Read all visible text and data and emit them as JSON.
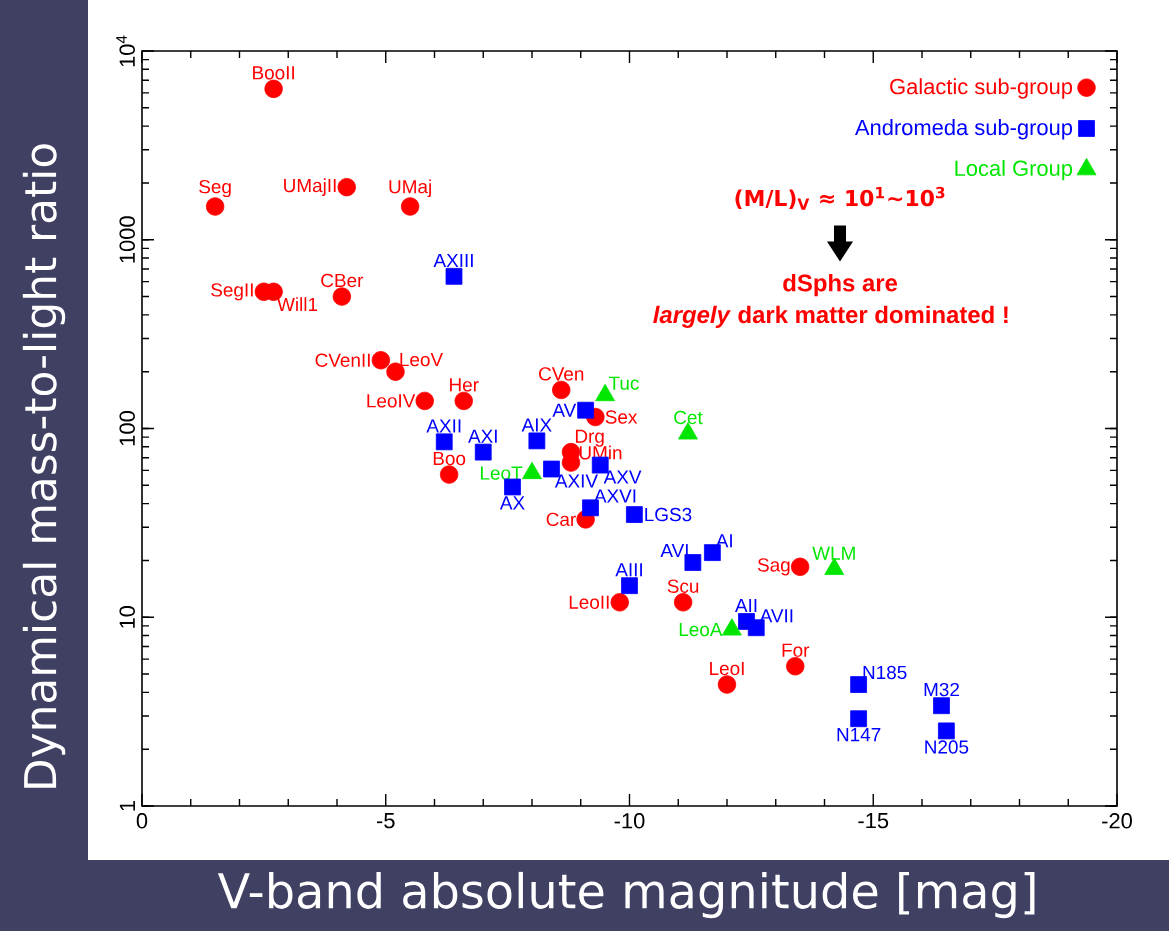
{
  "chart_data": {
    "type": "scatter",
    "xlabel": "V-band absolute magnitude [mag]",
    "ylabel": "Dynamical mass-to-light ratio",
    "xlim": [
      0,
      -20
    ],
    "xticks": [
      0,
      -5,
      -10,
      -15,
      -20
    ],
    "ylim": [
      1,
      10000
    ],
    "yticks": [
      1,
      10,
      100,
      1000,
      {
        "value": 10000,
        "label": "10$^{4}$"
      }
    ],
    "log": "y",
    "legend": "top right",
    "series": [
      {
        "name": "Galactic sub-group",
        "color": "#ff0000",
        "marker": "circle",
        "x": [
          -2.7,
          -1.5,
          -4.2,
          -5.5,
          -2.5,
          -2.7,
          -4.1,
          -4.9,
          -5.2,
          -5.8,
          -6.6,
          -8.6,
          -9.3,
          -6.3,
          -8.8,
          -8.8,
          -9.1,
          -9.8,
          -11.1,
          -13.5,
          -13.4,
          -12.0
        ],
        "values": [
          6300,
          1500,
          1900,
          1500,
          530,
          530,
          500,
          230,
          200,
          140,
          140,
          160,
          115,
          57,
          75,
          66,
          33,
          12,
          12,
          18.5,
          5.5,
          4.4
        ]
      },
      {
        "name": "Andromeda sub-group",
        "color": "#0000ff",
        "marker": "square",
        "x": [
          -6.4,
          -9.1,
          -6.2,
          -7.0,
          -8.1,
          -8.4,
          -9.4,
          -7.6,
          -9.2,
          -10.1,
          -11.3,
          -11.7,
          -10.0,
          -12.4,
          -12.6,
          -14.7,
          -14.7,
          -16.4,
          -16.5
        ],
        "values": [
          640,
          125,
          85,
          75,
          86,
          61,
          64,
          49,
          38,
          35,
          19.5,
          22,
          14.7,
          9.5,
          8.8,
          4.4,
          2.9,
          3.4,
          2.5
        ]
      },
      {
        "name": "Local Group",
        "color": "#00e600",
        "marker": "triangle",
        "x": [
          -9.5,
          -11.2,
          -8.0,
          -14.2,
          -12.1
        ],
        "values": [
          150,
          94,
          58,
          18,
          8.6
        ]
      }
    ],
    "annotations": [
      {
        "text": "BooII",
        "x": -2.7,
        "y": 6300
      },
      {
        "text": "Seg",
        "x": -1.5,
        "y": 1500
      },
      {
        "text": "UMajII",
        "x": -4.2,
        "y": 1900
      },
      {
        "text": "UMaj",
        "x": -5.5,
        "y": 1500
      },
      {
        "text": "SegII",
        "x": -2.5,
        "y": 530
      },
      {
        "text": "Will1",
        "x": -2.7,
        "y": 530
      },
      {
        "text": "CBer",
        "x": -4.1,
        "y": 500
      },
      {
        "text": "CVenII",
        "x": -4.9,
        "y": 230
      },
      {
        "text": "LeoV",
        "x": -5.2,
        "y": 200
      },
      {
        "text": "LeoIV",
        "x": -5.8,
        "y": 140
      },
      {
        "text": "Her",
        "x": -6.6,
        "y": 140
      },
      {
        "text": "CVen",
        "x": -8.6,
        "y": 160
      },
      {
        "text": "Sex",
        "x": -9.3,
        "y": 115
      },
      {
        "text": "Boo",
        "x": -6.3,
        "y": 57
      },
      {
        "text": "Drg",
        "x": -8.8,
        "y": 75
      },
      {
        "text": "UMin",
        "x": -8.8,
        "y": 66
      },
      {
        "text": "Car",
        "x": -9.1,
        "y": 33
      },
      {
        "text": "LeoII",
        "x": -9.8,
        "y": 12
      },
      {
        "text": "Scu",
        "x": -11.1,
        "y": 12
      },
      {
        "text": "Sag",
        "x": -13.5,
        "y": 18.5
      },
      {
        "text": "For",
        "x": -13.4,
        "y": 5.5
      },
      {
        "text": "LeoI",
        "x": -12.0,
        "y": 4.4
      },
      {
        "text": "AXIII",
        "x": -6.4,
        "y": 640
      },
      {
        "text": "AV",
        "x": -9.1,
        "y": 125
      },
      {
        "text": "AXII",
        "x": -6.2,
        "y": 85
      },
      {
        "text": "AXI",
        "x": -7.0,
        "y": 75
      },
      {
        "text": "AIX",
        "x": -8.1,
        "y": 86
      },
      {
        "text": "AXIV",
        "x": -8.4,
        "y": 61
      },
      {
        "text": "AXV",
        "x": -9.4,
        "y": 64
      },
      {
        "text": "AX",
        "x": -7.6,
        "y": 49
      },
      {
        "text": "AXVI",
        "x": -9.2,
        "y": 38
      },
      {
        "text": "LGS3",
        "x": -10.1,
        "y": 35
      },
      {
        "text": "AVI",
        "x": -11.3,
        "y": 19.5
      },
      {
        "text": "AI",
        "x": -11.7,
        "y": 22
      },
      {
        "text": "AIII",
        "x": -10.0,
        "y": 14.7
      },
      {
        "text": "AII",
        "x": -12.4,
        "y": 9.5
      },
      {
        "text": "AVII",
        "x": -12.6,
        "y": 8.8
      },
      {
        "text": "N185",
        "x": -14.7,
        "y": 4.4
      },
      {
        "text": "N147",
        "x": -14.7,
        "y": 2.9
      },
      {
        "text": "M32",
        "x": -16.4,
        "y": 3.4
      },
      {
        "text": "N205",
        "x": -16.5,
        "y": 2.5
      },
      {
        "text": "Tuc",
        "x": -9.5,
        "y": 150
      },
      {
        "text": "Cet",
        "x": -11.2,
        "y": 94
      },
      {
        "text": "LeoT",
        "x": -8.0,
        "y": 58
      },
      {
        "text": "WLM",
        "x": -14.2,
        "y": 18
      },
      {
        "text": "LeoA",
        "x": -12.1,
        "y": 8.6
      },
      "(M/L)$_{V}$ ≈ 10$^{1}$∼10$^{3}$",
      "dSphs are",
      "*largely* dark matter dominated !"
    ]
  }
}
